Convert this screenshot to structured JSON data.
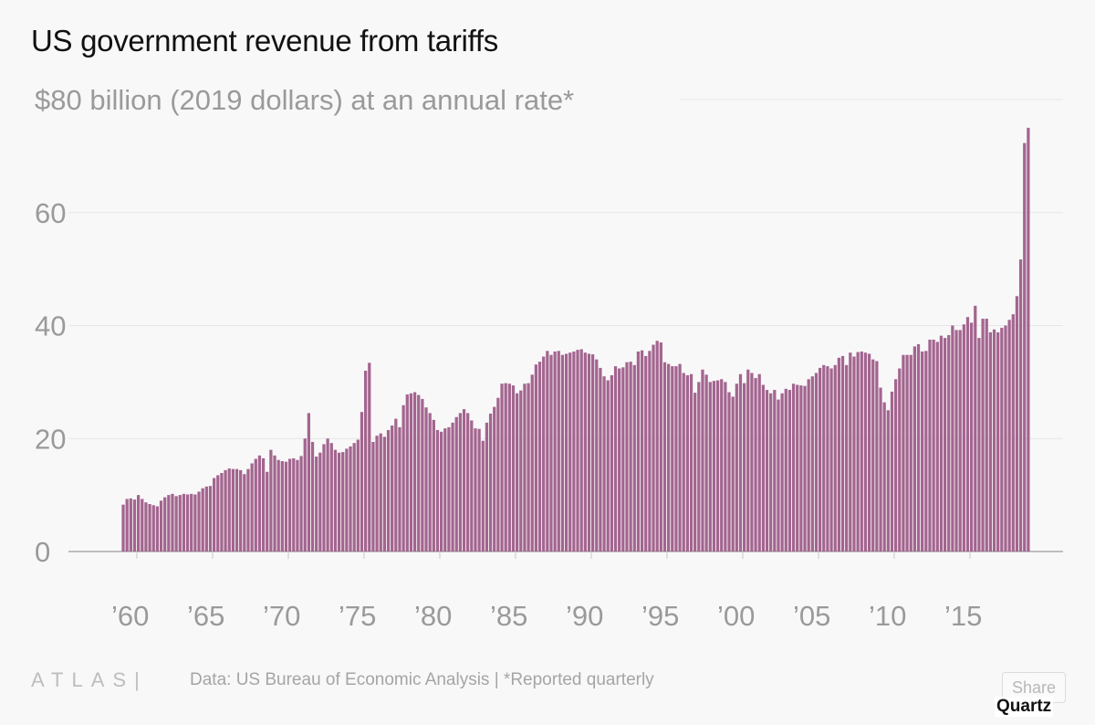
{
  "chart_data": {
    "type": "bar",
    "title": "US government revenue from tariffs",
    "ylabel": "$80 billion (2019 dollars) at an annual rate*",
    "ylim": [
      0,
      80
    ],
    "yticks": [
      "0",
      "20",
      "40",
      "60"
    ],
    "xticks": [
      "’60",
      "’65",
      "’70",
      "’75",
      "’80",
      "’85",
      "’90",
      "’95",
      "’00",
      "’05",
      "’10",
      "’15"
    ],
    "xtick_years": [
      1960,
      1965,
      1970,
      1975,
      1980,
      1985,
      1990,
      1995,
      2000,
      2005,
      2010,
      2015
    ],
    "x_start": "1959 Q1",
    "x_end": "2018 Q4",
    "frequency": "quarterly",
    "grid": true,
    "color": "#a3658f",
    "values": [
      8.3,
      9.3,
      9.4,
      9.2,
      10.0,
      9.3,
      8.7,
      8.4,
      8.2,
      8.0,
      9.0,
      9.6,
      10.0,
      10.2,
      9.8,
      10.0,
      10.2,
      10.1,
      10.2,
      10.1,
      10.6,
      11.2,
      11.5,
      11.6,
      13.0,
      13.5,
      13.9,
      14.4,
      14.7,
      14.6,
      14.6,
      14.4,
      13.7,
      14.6,
      15.6,
      16.4,
      17.0,
      16.5,
      14.1,
      18.0,
      17.0,
      16.2,
      16.0,
      15.9,
      16.4,
      16.5,
      16.2,
      16.9,
      20.0,
      24.5,
      19.4,
      16.8,
      17.5,
      19.0,
      20.0,
      19.2,
      18.0,
      17.5,
      17.6,
      18.2,
      18.6,
      19.2,
      19.8,
      24.7,
      32.0,
      33.4,
      19.4,
      20.5,
      20.9,
      20.3,
      21.5,
      22.3,
      23.5,
      22.0,
      25.9,
      27.8,
      28.0,
      28.2,
      27.7,
      27.0,
      25.5,
      24.5,
      23.3,
      21.5,
      21.2,
      21.8,
      22.0,
      22.8,
      23.8,
      24.5,
      25.2,
      24.5,
      23.2,
      21.8,
      21.7,
      19.6,
      22.8,
      24.4,
      25.6,
      27.2,
      29.7,
      29.8,
      29.7,
      29.4,
      28.0,
      28.5,
      29.7,
      29.8,
      31.3,
      33.1,
      33.6,
      34.5,
      35.5,
      34.8,
      35.4,
      35.5,
      34.8,
      35.0,
      35.2,
      35.4,
      35.7,
      35.8,
      35.2,
      35.0,
      34.9,
      34.0,
      32.5,
      31.0,
      30.3,
      31.2,
      32.8,
      32.4,
      32.6,
      33.5,
      33.6,
      33.0,
      35.4,
      35.6,
      34.6,
      35.5,
      36.6,
      37.3,
      37.0,
      33.5,
      33.2,
      32.8,
      32.8,
      33.2,
      31.6,
      31.2,
      31.4,
      28.1,
      30.0,
      32.2,
      31.3,
      30.0,
      30.2,
      30.3,
      30.5,
      30.0,
      28.2,
      27.4,
      29.7,
      31.4,
      29.8,
      32.2,
      31.6,
      30.7,
      31.4,
      29.5,
      28.6,
      28.0,
      28.6,
      26.9,
      28.0,
      28.8,
      28.6,
      29.7,
      29.5,
      29.4,
      29.3,
      30.5,
      31.0,
      31.6,
      32.5,
      33.0,
      32.8,
      32.4,
      33.0,
      34.3,
      34.6,
      33.0,
      35.2,
      34.5,
      35.3,
      35.4,
      35.2,
      35.0,
      34.0,
      33.7,
      29.0,
      26.4,
      25.0,
      28.3,
      30.5,
      32.4,
      34.8,
      34.8,
      34.8,
      36.3,
      36.7,
      35.4,
      35.5,
      37.5,
      37.5,
      37.1,
      38.2,
      37.8,
      38.3,
      40.0,
      39.2,
      39.2,
      40.2,
      41.5,
      40.5,
      43.5,
      37.8,
      41.2,
      41.2,
      38.8,
      39.3,
      38.8,
      39.6,
      40.0,
      41.0,
      42.0,
      45.2,
      51.7,
      72.3,
      75.0
    ]
  },
  "footer": {
    "logo": "ATLAS",
    "source": "Data:  US Bureau of Economic Analysis | *Reported quarterly",
    "share_label": "Share",
    "brand": "Quartz"
  }
}
